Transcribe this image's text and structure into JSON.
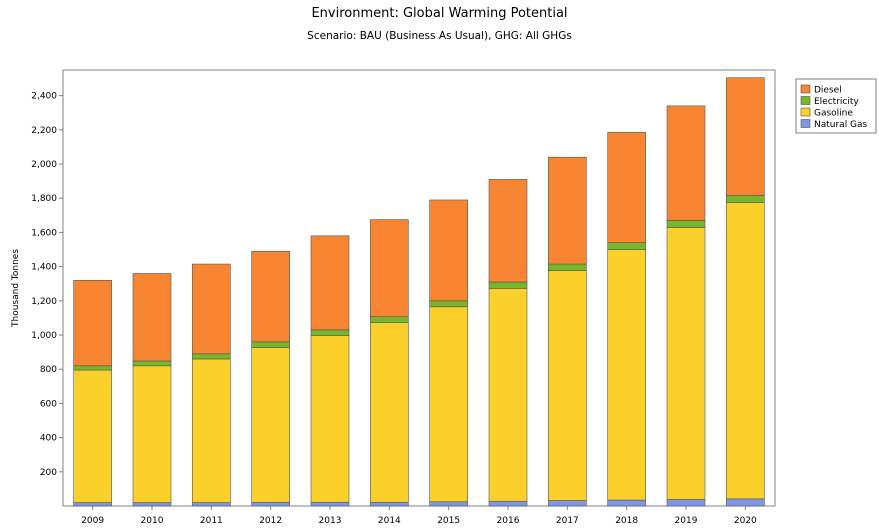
{
  "chart_data": {
    "type": "bar",
    "stacked": true,
    "title": "Environment: Global Warming Potential",
    "subtitle": "Scenario: BAU (Business As Usual), GHG: All GHGs",
    "xlabel": "",
    "ylabel": "Thousand Tonnes",
    "categories": [
      "2009",
      "2010",
      "2011",
      "2012",
      "2013",
      "2014",
      "2015",
      "2016",
      "2017",
      "2018",
      "2019",
      "2020"
    ],
    "ylim": [
      0,
      2550
    ],
    "yticks": [
      200,
      400,
      600,
      800,
      1000,
      1200,
      1400,
      1600,
      1800,
      2000,
      2200,
      2400
    ],
    "ytick_labels": [
      "200",
      "400",
      "600",
      "800",
      "1,000",
      "1,200",
      "1,400",
      "1,600",
      "1,800",
      "2,000",
      "2,200",
      "2,400"
    ],
    "grid": false,
    "legend_position": "top-right",
    "series": [
      {
        "name": "Natural Gas",
        "color": "#7f95e6",
        "values": [
          20,
          20,
          20,
          22,
          22,
          22,
          25,
          28,
          32,
          35,
          38,
          42
        ]
      },
      {
        "name": "Gasoline",
        "color": "#fbd02a",
        "values": [
          775,
          800,
          840,
          905,
          975,
          1050,
          1140,
          1245,
          1345,
          1465,
          1590,
          1732
        ]
      },
      {
        "name": "Electricity",
        "color": "#77b72c",
        "values": [
          25,
          28,
          30,
          33,
          33,
          35,
          35,
          37,
          38,
          40,
          42,
          42
        ]
      },
      {
        "name": "Diesel",
        "color": "#f88532",
        "values": [
          500,
          512,
          525,
          530,
          550,
          568,
          590,
          600,
          625,
          645,
          670,
          689
        ]
      }
    ],
    "legend_order": [
      "Diesel",
      "Electricity",
      "Gasoline",
      "Natural Gas"
    ]
  }
}
